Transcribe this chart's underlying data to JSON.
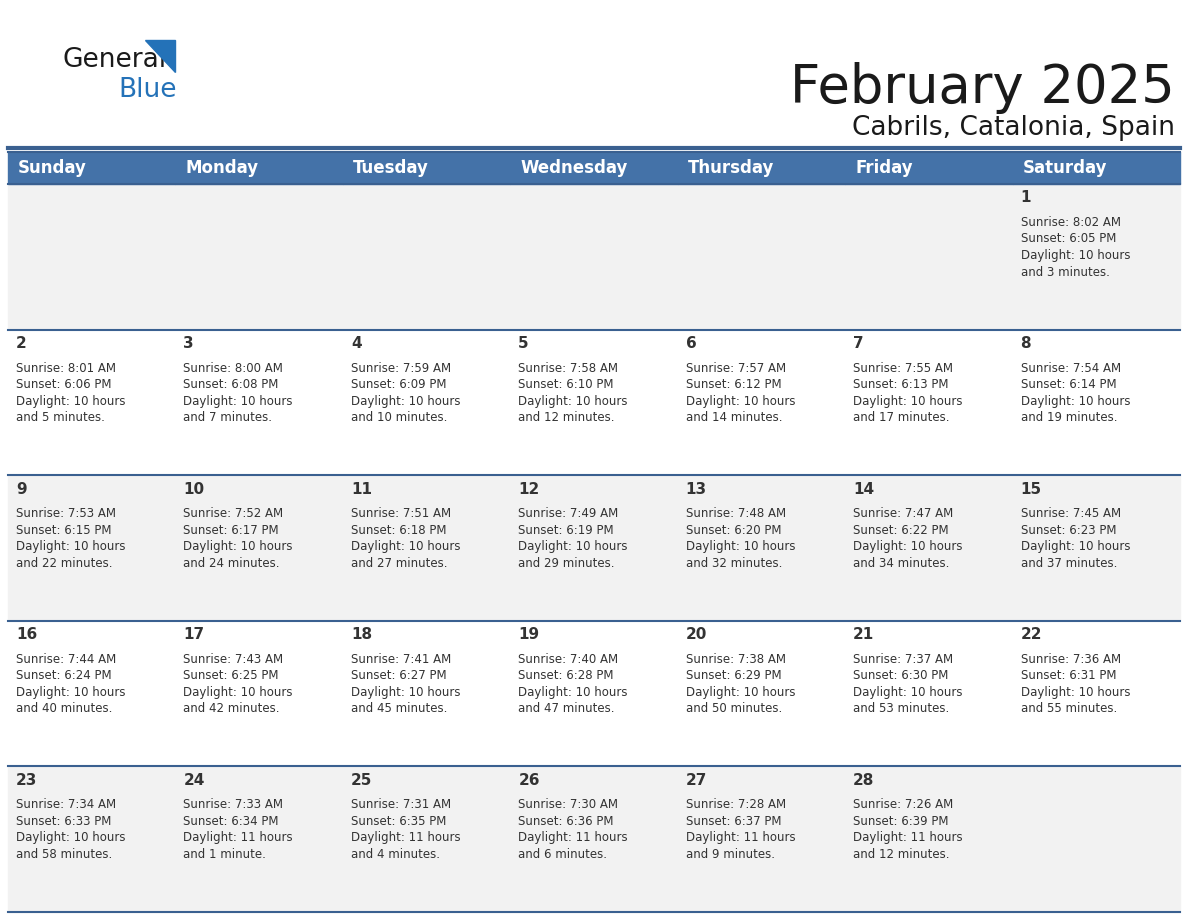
{
  "title": "February 2025",
  "subtitle": "Cabrils, Catalonia, Spain",
  "header_bg": "#4472A8",
  "header_text": "#FFFFFF",
  "row_bg_light": "#F2F2F2",
  "row_bg_white": "#FFFFFF",
  "separator_color": "#3A6090",
  "day_headers": [
    "Sunday",
    "Monday",
    "Tuesday",
    "Wednesday",
    "Thursday",
    "Friday",
    "Saturday"
  ],
  "title_color": "#1a1a1a",
  "subtitle_color": "#1a1a1a",
  "day_num_color": "#333333",
  "cell_text_color": "#333333",
  "calendar": [
    [
      null,
      null,
      null,
      null,
      null,
      null,
      {
        "day": 1,
        "sunrise": "8:02 AM",
        "sunset": "6:05 PM",
        "daylight": "10 hours\nand 3 minutes."
      }
    ],
    [
      {
        "day": 2,
        "sunrise": "8:01 AM",
        "sunset": "6:06 PM",
        "daylight": "10 hours\nand 5 minutes."
      },
      {
        "day": 3,
        "sunrise": "8:00 AM",
        "sunset": "6:08 PM",
        "daylight": "10 hours\nand 7 minutes."
      },
      {
        "day": 4,
        "sunrise": "7:59 AM",
        "sunset": "6:09 PM",
        "daylight": "10 hours\nand 10 minutes."
      },
      {
        "day": 5,
        "sunrise": "7:58 AM",
        "sunset": "6:10 PM",
        "daylight": "10 hours\nand 12 minutes."
      },
      {
        "day": 6,
        "sunrise": "7:57 AM",
        "sunset": "6:12 PM",
        "daylight": "10 hours\nand 14 minutes."
      },
      {
        "day": 7,
        "sunrise": "7:55 AM",
        "sunset": "6:13 PM",
        "daylight": "10 hours\nand 17 minutes."
      },
      {
        "day": 8,
        "sunrise": "7:54 AM",
        "sunset": "6:14 PM",
        "daylight": "10 hours\nand 19 minutes."
      }
    ],
    [
      {
        "day": 9,
        "sunrise": "7:53 AM",
        "sunset": "6:15 PM",
        "daylight": "10 hours\nand 22 minutes."
      },
      {
        "day": 10,
        "sunrise": "7:52 AM",
        "sunset": "6:17 PM",
        "daylight": "10 hours\nand 24 minutes."
      },
      {
        "day": 11,
        "sunrise": "7:51 AM",
        "sunset": "6:18 PM",
        "daylight": "10 hours\nand 27 minutes."
      },
      {
        "day": 12,
        "sunrise": "7:49 AM",
        "sunset": "6:19 PM",
        "daylight": "10 hours\nand 29 minutes."
      },
      {
        "day": 13,
        "sunrise": "7:48 AM",
        "sunset": "6:20 PM",
        "daylight": "10 hours\nand 32 minutes."
      },
      {
        "day": 14,
        "sunrise": "7:47 AM",
        "sunset": "6:22 PM",
        "daylight": "10 hours\nand 34 minutes."
      },
      {
        "day": 15,
        "sunrise": "7:45 AM",
        "sunset": "6:23 PM",
        "daylight": "10 hours\nand 37 minutes."
      }
    ],
    [
      {
        "day": 16,
        "sunrise": "7:44 AM",
        "sunset": "6:24 PM",
        "daylight": "10 hours\nand 40 minutes."
      },
      {
        "day": 17,
        "sunrise": "7:43 AM",
        "sunset": "6:25 PM",
        "daylight": "10 hours\nand 42 minutes."
      },
      {
        "day": 18,
        "sunrise": "7:41 AM",
        "sunset": "6:27 PM",
        "daylight": "10 hours\nand 45 minutes."
      },
      {
        "day": 19,
        "sunrise": "7:40 AM",
        "sunset": "6:28 PM",
        "daylight": "10 hours\nand 47 minutes."
      },
      {
        "day": 20,
        "sunrise": "7:38 AM",
        "sunset": "6:29 PM",
        "daylight": "10 hours\nand 50 minutes."
      },
      {
        "day": 21,
        "sunrise": "7:37 AM",
        "sunset": "6:30 PM",
        "daylight": "10 hours\nand 53 minutes."
      },
      {
        "day": 22,
        "sunrise": "7:36 AM",
        "sunset": "6:31 PM",
        "daylight": "10 hours\nand 55 minutes."
      }
    ],
    [
      {
        "day": 23,
        "sunrise": "7:34 AM",
        "sunset": "6:33 PM",
        "daylight": "10 hours\nand 58 minutes."
      },
      {
        "day": 24,
        "sunrise": "7:33 AM",
        "sunset": "6:34 PM",
        "daylight": "11 hours\nand 1 minute."
      },
      {
        "day": 25,
        "sunrise": "7:31 AM",
        "sunset": "6:35 PM",
        "daylight": "11 hours\nand 4 minutes."
      },
      {
        "day": 26,
        "sunrise": "7:30 AM",
        "sunset": "6:36 PM",
        "daylight": "11 hours\nand 6 minutes."
      },
      {
        "day": 27,
        "sunrise": "7:28 AM",
        "sunset": "6:37 PM",
        "daylight": "11 hours\nand 9 minutes."
      },
      {
        "day": 28,
        "sunrise": "7:26 AM",
        "sunset": "6:39 PM",
        "daylight": "11 hours\nand 12 minutes."
      },
      null
    ]
  ]
}
